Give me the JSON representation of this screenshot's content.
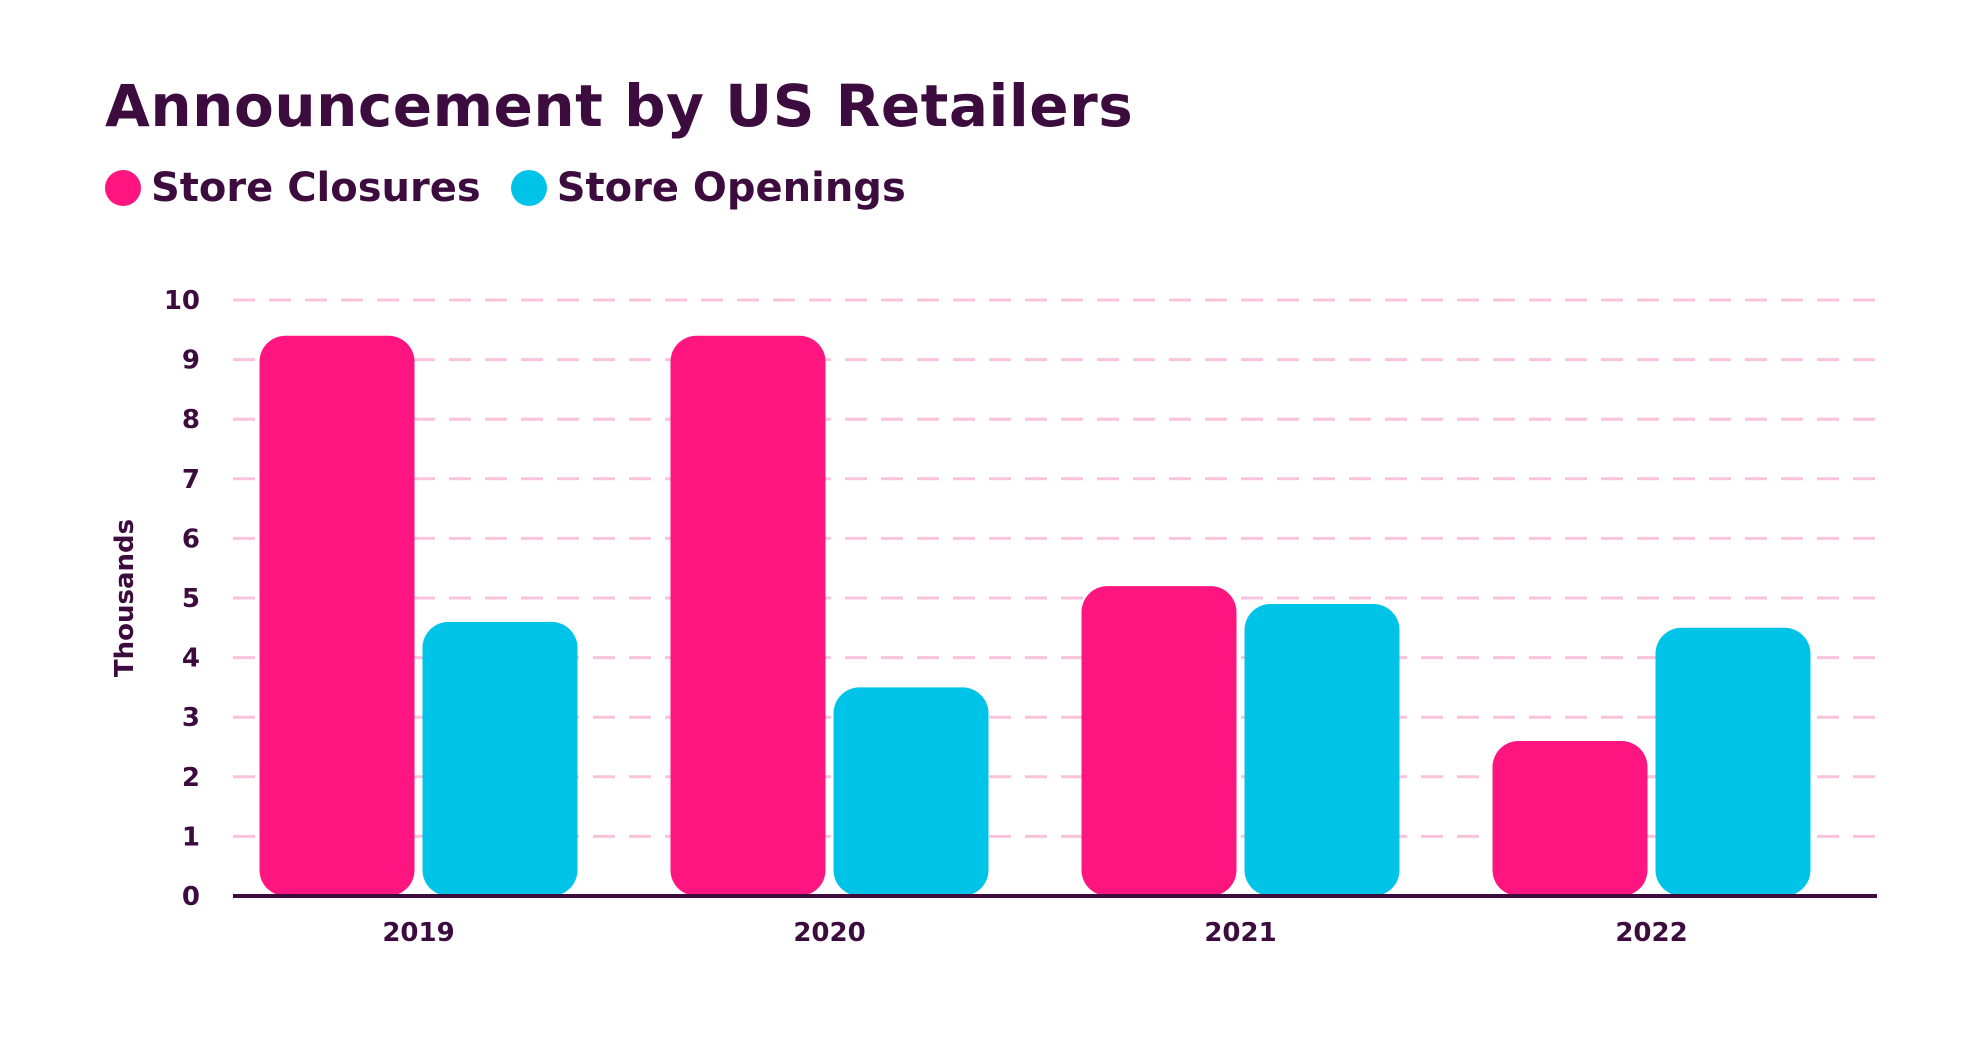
{
  "chart_data": {
    "type": "bar",
    "title": "Announcement by US Retailers",
    "categories": [
      "2019",
      "2020",
      "2021",
      "2022"
    ],
    "series": [
      {
        "name": "Store Closures",
        "color": "#ff1580",
        "values": [
          9.4,
          9.4,
          5.2,
          2.6
        ]
      },
      {
        "name": "Store Openings",
        "color": "#00c3e8",
        "values": [
          4.6,
          3.5,
          4.9,
          4.5
        ]
      }
    ],
    "xlabel": "",
    "ylabel": "Thousands",
    "ylim": [
      0,
      10
    ],
    "yticks": [
      "0",
      "1",
      "2",
      "3",
      "4",
      "5",
      "6",
      "7",
      "8",
      "9",
      "10"
    ],
    "grid": true,
    "legend": "top-left"
  }
}
